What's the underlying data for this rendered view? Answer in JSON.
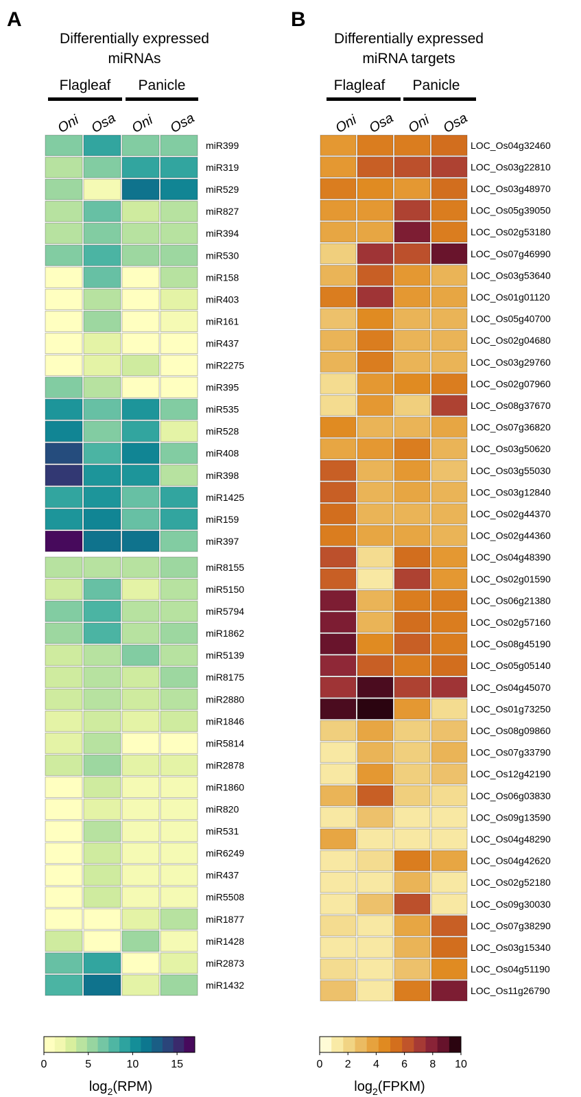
{
  "chart_data": [
    {
      "type": "heatmap",
      "panel": "A",
      "title_lines": [
        "Differentially expressed",
        "miRNAs"
      ],
      "column_groups": [
        "Flagleaf",
        "Panicle"
      ],
      "columns": [
        "Oni",
        "Osa",
        "Oni",
        "Osa"
      ],
      "rows": [
        "miR399",
        "miR319",
        "miR529",
        "miR827",
        "miR394",
        "miR530",
        "miR158",
        "miR403",
        "miR161",
        "miR437",
        "miR2275",
        "miR395",
        "miR535",
        "miR528",
        "miR408",
        "miR398",
        "miR1425",
        "miR159",
        "miR397",
        "miR8155",
        "miR5150",
        "miR5794",
        "miR1862",
        "miR5139",
        "miR8175",
        "miR2880",
        "miR1846",
        "miR5814",
        "miR2878",
        "miR1860",
        "miR820",
        "miR531",
        "miR6249",
        "miR437",
        "miR5508",
        "miR1877",
        "miR1428",
        "miR2873",
        "miR1432"
      ],
      "values": [
        [
          6,
          9,
          6,
          6
        ],
        [
          4,
          6,
          9,
          9
        ],
        [
          5,
          1,
          12,
          11
        ],
        [
          4,
          7,
          3,
          4
        ],
        [
          4,
          6,
          4,
          4
        ],
        [
          6,
          8,
          5,
          5
        ],
        [
          0,
          7,
          0,
          4
        ],
        [
          0,
          4,
          0,
          2
        ],
        [
          0,
          5,
          0,
          1
        ],
        [
          0,
          2,
          0,
          0
        ],
        [
          0,
          2,
          3,
          0
        ],
        [
          6,
          4,
          0,
          0
        ],
        [
          10,
          7,
          10,
          6
        ],
        [
          11,
          6,
          9,
          2
        ],
        [
          14,
          8,
          11,
          6
        ],
        [
          15,
          10,
          10,
          4
        ],
        [
          9,
          10,
          7,
          9
        ],
        [
          10,
          11,
          7,
          9
        ],
        [
          17,
          12,
          12,
          6
        ],
        [
          4,
          4,
          4,
          5
        ],
        [
          3,
          7,
          2,
          4
        ],
        [
          6,
          8,
          4,
          4
        ],
        [
          5,
          8,
          4,
          5
        ],
        [
          3,
          4,
          6,
          4
        ],
        [
          3,
          4,
          3,
          5
        ],
        [
          3,
          4,
          3,
          4
        ],
        [
          2,
          3,
          2,
          3
        ],
        [
          2,
          4,
          0,
          0
        ],
        [
          3,
          5,
          2,
          2
        ],
        [
          0,
          3,
          1,
          1
        ],
        [
          0,
          2,
          1,
          1
        ],
        [
          0,
          4,
          1,
          1
        ],
        [
          0,
          3,
          1,
          1
        ],
        [
          0,
          3,
          1,
          1
        ],
        [
          0,
          3,
          1,
          1
        ],
        [
          0,
          0,
          2,
          4
        ],
        [
          3,
          0,
          5,
          1
        ],
        [
          7,
          9,
          0,
          2
        ],
        [
          8,
          12,
          2,
          5
        ]
      ],
      "colorbar": {
        "ticks": [
          "0",
          "5",
          "10",
          "15"
        ],
        "range": [
          0,
          17
        ],
        "label": "log",
        "label_sub": "2",
        "label_unit": "(RPM)",
        "colormap": "viridis-like"
      }
    },
    {
      "type": "heatmap",
      "panel": "B",
      "title_lines": [
        "Differentially expressed",
        "miRNA targets"
      ],
      "column_groups": [
        "Flagleaf",
        "Panicle"
      ],
      "columns": [
        "Oni",
        "Osa",
        "Oni",
        "Osa"
      ],
      "rows": [
        "LOC_Os04g32460",
        "LOC_Os03g22810",
        "LOC_Os03g48970",
        "LOC_Os05g39050",
        "LOC_Os02g53180",
        "LOC_Os07g46990",
        "LOC_Os03g53640",
        "LOC_Os01g01120",
        "LOC_Os05g40700",
        "LOC_Os02g04680",
        "LOC_Os03g29760",
        "LOC_Os02g07960",
        "LOC_Os08g37670",
        "LOC_Os07g36820",
        "LOC_Os03g50620",
        "LOC_Os03g55030",
        "LOC_Os03g12840",
        "LOC_Os02g44370",
        "LOC_Os02g44360",
        "LOC_Os04g48390",
        "LOC_Os02g01590",
        "LOC_Os06g21380",
        "LOC_Os02g57160",
        "LOC_Os08g45190",
        "LOC_Os05g05140",
        "LOC_Os04g45070",
        "LOC_Os01g73250",
        "LOC_Os08g09860",
        "LOC_Os07g33790",
        "LOC_Os12g42190",
        "LOC_Os06g03830",
        "LOC_Os09g13590",
        "LOC_Os04g48290",
        "LOC_Os04g42620",
        "LOC_Os02g52180",
        "LOC_Os09g30030",
        "LOC_Os07g38290",
        "LOC_Os03g15340",
        "LOC_Os04g51190",
        "LOC_Os11g26790"
      ],
      "values": [
        [
          4,
          5,
          5,
          5.5
        ],
        [
          4,
          6,
          6.5,
          7
        ],
        [
          5,
          4.5,
          4,
          5.5
        ],
        [
          4,
          4,
          7,
          5
        ],
        [
          3.5,
          3.5,
          8.5,
          5
        ],
        [
          2,
          7.5,
          6.5,
          9
        ],
        [
          3,
          6,
          4,
          3
        ],
        [
          5,
          7.5,
          4,
          3.5
        ],
        [
          2.5,
          4.5,
          3,
          3
        ],
        [
          3,
          5,
          3,
          3
        ],
        [
          3,
          5,
          3,
          3
        ],
        [
          1.5,
          4,
          4.5,
          5
        ],
        [
          1.5,
          4,
          2,
          7
        ],
        [
          4.5,
          3,
          3,
          3.5
        ],
        [
          3.5,
          4,
          5,
          3
        ],
        [
          6,
          3,
          4,
          2.5
        ],
        [
          6,
          3,
          3.5,
          3
        ],
        [
          5.5,
          3,
          3,
          3
        ],
        [
          5,
          3.5,
          3.5,
          3
        ],
        [
          6.5,
          1.5,
          5.5,
          4
        ],
        [
          6,
          1,
          7,
          4
        ],
        [
          8.5,
          3,
          5,
          5
        ],
        [
          8.5,
          3,
          5.5,
          5
        ],
        [
          9,
          4.5,
          6,
          5
        ],
        [
          8,
          6,
          5,
          5.5
        ],
        [
          7.5,
          9.5,
          7,
          7.5
        ],
        [
          9.5,
          10,
          4,
          1.5
        ],
        [
          2,
          3.5,
          2,
          2.5
        ],
        [
          1,
          3,
          2,
          3
        ],
        [
          1,
          4,
          2,
          2.5
        ],
        [
          3,
          6,
          2,
          1.5
        ],
        [
          1,
          2.5,
          1,
          1
        ],
        [
          3.5,
          1,
          1,
          1
        ],
        [
          1,
          1.5,
          5,
          3.5
        ],
        [
          1,
          1,
          3,
          1
        ],
        [
          1,
          2.5,
          6.5,
          1
        ],
        [
          1.5,
          1,
          3.5,
          6
        ],
        [
          1,
          1,
          3,
          5.5
        ],
        [
          1.5,
          1,
          2.5,
          4.5
        ],
        [
          2.5,
          1,
          5,
          8.5
        ]
      ],
      "colorbar": {
        "ticks": [
          "0",
          "2",
          "4",
          "6",
          "8",
          "10"
        ],
        "range": [
          0,
          10
        ],
        "label": "log",
        "label_sub": "2",
        "label_unit": "(FPKM)",
        "colormap": "YlOrBr-like"
      }
    }
  ]
}
